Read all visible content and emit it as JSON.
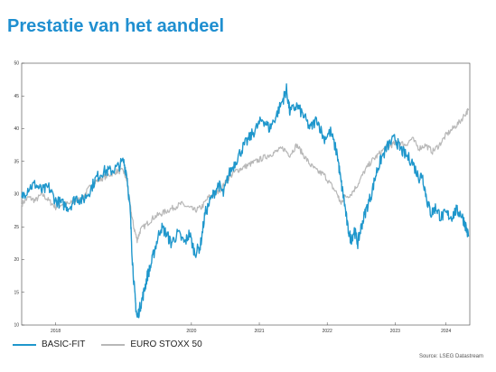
{
  "title": "Prestatie van het aandeel",
  "source": "Source: LSEG Datastream",
  "colors": {
    "series1": "#1f97cc",
    "series2": "#b8b8b8",
    "title": "#1f8fd0"
  },
  "chart_data": {
    "type": "line",
    "title": "Prestatie van het aandeel",
    "xlabel": "",
    "ylabel": "",
    "ylim": [
      10,
      50
    ],
    "yticks": [
      10,
      15,
      20,
      25,
      30,
      35,
      40,
      45,
      50
    ],
    "xlim": [
      2017.75,
      2024.35
    ],
    "xticks": [
      {
        "label": "2018",
        "x": 2018.25
      },
      {
        "label": "2020",
        "x": 2020.25
      },
      {
        "label": "2021",
        "x": 2021.25
      },
      {
        "label": "2022",
        "x": 2022.25
      },
      {
        "label": "2023",
        "x": 2023.25
      },
      {
        "label": "2024",
        "x": 2024.0
      }
    ],
    "grid": false,
    "legend_position": "bottom-left",
    "series": [
      {
        "name": "BASIC-FIT",
        "points": [
          [
            2017.75,
            29.5
          ],
          [
            2017.85,
            31.0
          ],
          [
            2017.95,
            31.5
          ],
          [
            2018.05,
            30.5
          ],
          [
            2018.15,
            31.0
          ],
          [
            2018.25,
            29.0
          ],
          [
            2018.35,
            28.5
          ],
          [
            2018.45,
            28.0
          ],
          [
            2018.55,
            29.5
          ],
          [
            2018.65,
            29.0
          ],
          [
            2018.75,
            30.5
          ],
          [
            2018.85,
            32.5
          ],
          [
            2018.95,
            33.5
          ],
          [
            2019.05,
            33.5
          ],
          [
            2019.15,
            34.0
          ],
          [
            2019.25,
            35.0
          ],
          [
            2019.3,
            33.0
          ],
          [
            2019.35,
            27.0
          ],
          [
            2019.38,
            20.0
          ],
          [
            2019.42,
            14.0
          ],
          [
            2019.45,
            11.0
          ],
          [
            2019.5,
            13.0
          ],
          [
            2019.55,
            15.0
          ],
          [
            2019.6,
            17.5
          ],
          [
            2019.65,
            19.0
          ],
          [
            2019.72,
            22.0
          ],
          [
            2019.8,
            25.0
          ],
          [
            2019.88,
            24.0
          ],
          [
            2019.95,
            22.5
          ],
          [
            2020.05,
            24.0
          ],
          [
            2020.15,
            22.5
          ],
          [
            2020.22,
            24.0
          ],
          [
            2020.3,
            21.0
          ],
          [
            2020.38,
            22.0
          ],
          [
            2020.45,
            27.0
          ],
          [
            2020.55,
            29.5
          ],
          [
            2020.65,
            31.5
          ],
          [
            2020.72,
            30.0
          ],
          [
            2020.8,
            33.0
          ],
          [
            2020.9,
            35.0
          ],
          [
            2021.0,
            37.0
          ],
          [
            2021.1,
            38.5
          ],
          [
            2021.2,
            40.0
          ],
          [
            2021.3,
            41.5
          ],
          [
            2021.4,
            40.0
          ],
          [
            2021.5,
            42.0
          ],
          [
            2021.6,
            44.5
          ],
          [
            2021.65,
            46.0
          ],
          [
            2021.7,
            42.5
          ],
          [
            2021.8,
            43.5
          ],
          [
            2021.9,
            42.0
          ],
          [
            2022.0,
            40.0
          ],
          [
            2022.1,
            41.5
          ],
          [
            2022.2,
            38.5
          ],
          [
            2022.3,
            39.5
          ],
          [
            2022.4,
            36.0
          ],
          [
            2022.45,
            32.0
          ],
          [
            2022.5,
            29.0
          ],
          [
            2022.55,
            25.0
          ],
          [
            2022.6,
            23.0
          ],
          [
            2022.65,
            24.5
          ],
          [
            2022.7,
            22.5
          ],
          [
            2022.75,
            25.0
          ],
          [
            2022.82,
            27.5
          ],
          [
            2022.9,
            30.0
          ],
          [
            2022.98,
            33.5
          ],
          [
            2023.05,
            35.5
          ],
          [
            2023.15,
            37.5
          ],
          [
            2023.25,
            38.5
          ],
          [
            2023.32,
            37.0
          ],
          [
            2023.4,
            36.0
          ],
          [
            2023.5,
            35.0
          ],
          [
            2023.6,
            32.5
          ],
          [
            2023.65,
            33.0
          ],
          [
            2023.72,
            29.0
          ],
          [
            2023.78,
            27.0
          ],
          [
            2023.85,
            28.0
          ],
          [
            2023.92,
            26.5
          ],
          [
            2024.0,
            27.0
          ],
          [
            2024.08,
            26.5
          ],
          [
            2024.15,
            27.5
          ],
          [
            2024.22,
            27.0
          ],
          [
            2024.28,
            25.5
          ],
          [
            2024.33,
            23.5
          ]
        ]
      },
      {
        "name": "EURO STOXX 50",
        "points": [
          [
            2017.75,
            28.5
          ],
          [
            2017.85,
            29.5
          ],
          [
            2017.95,
            29.0
          ],
          [
            2018.05,
            30.0
          ],
          [
            2018.15,
            29.0
          ],
          [
            2018.25,
            28.0
          ],
          [
            2018.35,
            28.5
          ],
          [
            2018.45,
            28.5
          ],
          [
            2018.55,
            29.0
          ],
          [
            2018.65,
            29.5
          ],
          [
            2018.75,
            31.0
          ],
          [
            2018.85,
            32.0
          ],
          [
            2018.95,
            32.5
          ],
          [
            2019.05,
            33.0
          ],
          [
            2019.15,
            33.5
          ],
          [
            2019.25,
            33.5
          ],
          [
            2019.3,
            32.0
          ],
          [
            2019.35,
            28.0
          ],
          [
            2019.4,
            25.0
          ],
          [
            2019.45,
            23.0
          ],
          [
            2019.5,
            24.5
          ],
          [
            2019.6,
            25.5
          ],
          [
            2019.7,
            26.5
          ],
          [
            2019.8,
            27.0
          ],
          [
            2019.9,
            27.5
          ],
          [
            2020.0,
            28.0
          ],
          [
            2020.1,
            28.5
          ],
          [
            2020.2,
            28.0
          ],
          [
            2020.3,
            27.5
          ],
          [
            2020.4,
            28.0
          ],
          [
            2020.5,
            29.5
          ],
          [
            2020.6,
            30.0
          ],
          [
            2020.7,
            31.0
          ],
          [
            2020.8,
            32.5
          ],
          [
            2020.9,
            33.5
          ],
          [
            2021.0,
            34.0
          ],
          [
            2021.1,
            34.5
          ],
          [
            2021.2,
            35.0
          ],
          [
            2021.3,
            35.5
          ],
          [
            2021.4,
            36.0
          ],
          [
            2021.5,
            36.5
          ],
          [
            2021.6,
            37.0
          ],
          [
            2021.7,
            36.0
          ],
          [
            2021.8,
            37.5
          ],
          [
            2021.9,
            36.0
          ],
          [
            2022.0,
            34.5
          ],
          [
            2022.1,
            33.5
          ],
          [
            2022.2,
            33.0
          ],
          [
            2022.3,
            31.5
          ],
          [
            2022.4,
            30.0
          ],
          [
            2022.45,
            28.5
          ],
          [
            2022.5,
            29.5
          ],
          [
            2022.6,
            30.0
          ],
          [
            2022.7,
            31.5
          ],
          [
            2022.8,
            33.5
          ],
          [
            2022.9,
            35.0
          ],
          [
            2023.0,
            36.0
          ],
          [
            2023.1,
            37.0
          ],
          [
            2023.2,
            37.5
          ],
          [
            2023.3,
            38.0
          ],
          [
            2023.4,
            37.5
          ],
          [
            2023.5,
            38.5
          ],
          [
            2023.6,
            37.0
          ],
          [
            2023.7,
            37.5
          ],
          [
            2023.8,
            36.5
          ],
          [
            2023.9,
            37.5
          ],
          [
            2024.0,
            39.0
          ],
          [
            2024.1,
            40.0
          ],
          [
            2024.2,
            41.0
          ],
          [
            2024.3,
            42.5
          ],
          [
            2024.33,
            42.8
          ]
        ]
      }
    ]
  }
}
